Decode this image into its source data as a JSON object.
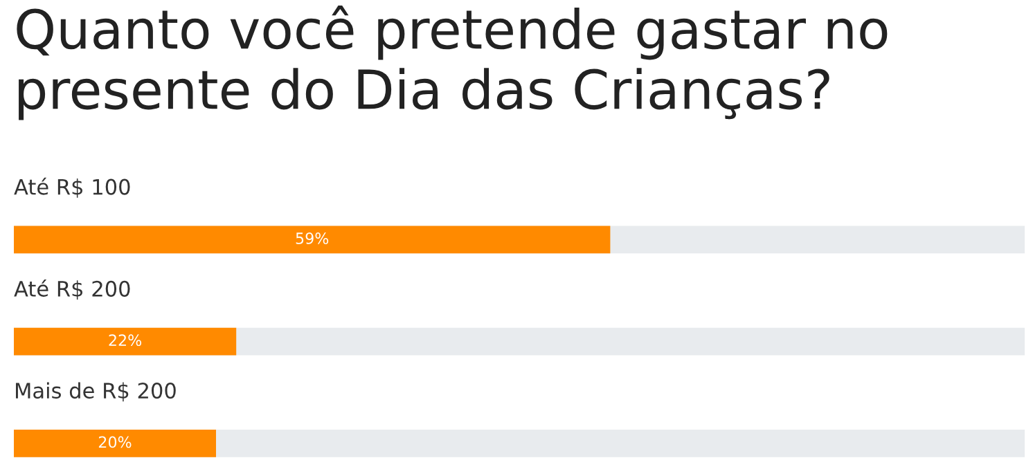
{
  "chart_data": {
    "type": "bar",
    "orientation": "horizontal",
    "title": "Quanto você pretende gastar no presente do Dia das Crianças?",
    "categories": [
      "Até R$ 100",
      "Até R$ 200",
      "Mais de R$ 200"
    ],
    "values": [
      59,
      22,
      20
    ],
    "value_labels": [
      "59%",
      "22%",
      "20%"
    ],
    "color": "#ff8a00",
    "xlim": [
      0,
      100
    ]
  }
}
